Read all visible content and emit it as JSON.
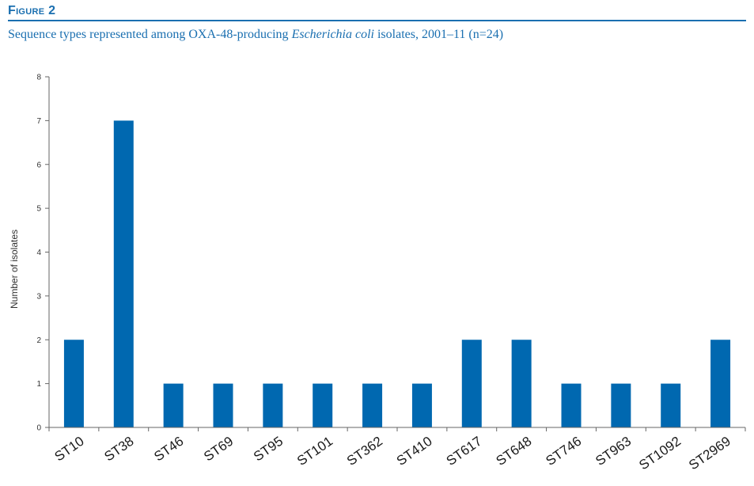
{
  "figure": {
    "label": "Figure 2",
    "caption_pre": "Sequence types represented among OXA-48-producing ",
    "caption_italic": "Escherichia coli",
    "caption_post": " isolates, 2001–11 (n=24)"
  },
  "colors": {
    "accent": "#1a6fb0",
    "bar": "#0068b0",
    "axis": "#666666"
  },
  "chart_data": {
    "type": "bar",
    "categories": [
      "ST10",
      "ST38",
      "ST46",
      "ST69",
      "ST95",
      "ST101",
      "ST362",
      "ST410",
      "ST617",
      "ST648",
      "ST746",
      "ST963",
      "ST1092",
      "ST2969"
    ],
    "values": [
      2,
      7,
      1,
      1,
      1,
      1,
      1,
      1,
      2,
      2,
      1,
      1,
      1,
      2
    ],
    "ylabel": "Number of isolates",
    "ylim": [
      0,
      8
    ],
    "yticks": [
      0,
      1,
      2,
      3,
      4,
      5,
      6,
      7,
      8
    ],
    "grid": false
  }
}
